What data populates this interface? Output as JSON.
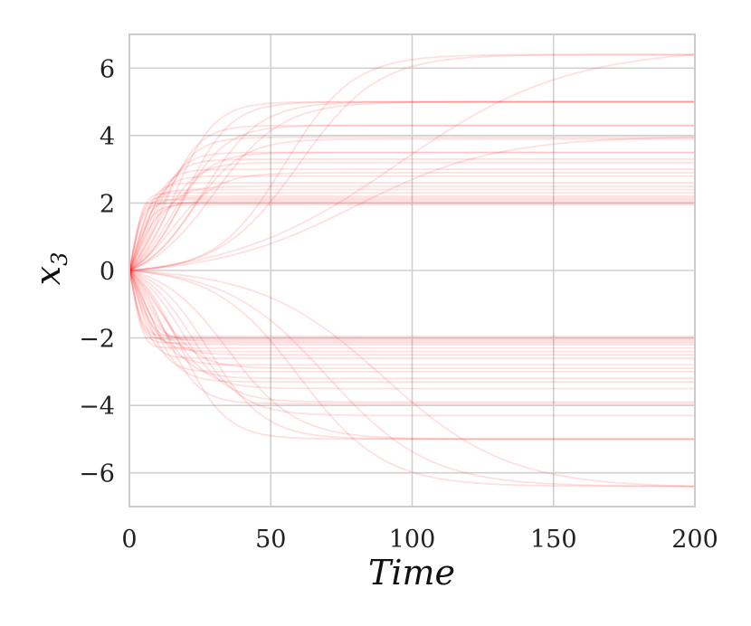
{
  "chart_data": {
    "type": "line",
    "title": "",
    "xlabel": "Time",
    "ylabel": "x",
    "ylabel_subscript": "3",
    "xlim": [
      0,
      200
    ],
    "ylim": [
      -7,
      7
    ],
    "xticks": [
      0,
      50,
      100,
      150,
      200
    ],
    "xtick_labels": [
      "0",
      "50",
      "100",
      "150",
      "200"
    ],
    "yticks": [
      -6,
      -4,
      -2,
      0,
      2,
      4,
      6
    ],
    "ytick_labels": [
      "−6",
      "−4",
      "−2",
      "0",
      "2",
      "4",
      "6"
    ],
    "grid": true,
    "legend": "none",
    "line_color": "#ff0000",
    "line_opacity": 0.12,
    "trajectory_start": 0,
    "trajectories": [
      {
        "final": 6.4,
        "tau": 30,
        "t50": 95
      },
      {
        "final": 6.4,
        "tau": 12,
        "t50": 55
      },
      {
        "final": 6.4,
        "tau": 14,
        "t50": 60
      },
      {
        "final": 5.0,
        "tau": 8,
        "t50": 20
      },
      {
        "final": 5.0,
        "tau": 10,
        "t50": 26
      },
      {
        "final": 5.0,
        "tau": 7,
        "t50": 16
      },
      {
        "final": 5.0,
        "tau": 12,
        "t50": 30
      },
      {
        "final": 4.3,
        "tau": 6,
        "t50": 12
      },
      {
        "final": 4.3,
        "tau": 8,
        "t50": 18
      },
      {
        "final": 3.95,
        "tau": 25,
        "t50": 80
      },
      {
        "final": 3.95,
        "tau": 6,
        "t50": 10
      },
      {
        "final": 3.9,
        "tau": 9,
        "t50": 22
      },
      {
        "final": 3.5,
        "tau": 5,
        "t50": 8
      },
      {
        "final": 3.5,
        "tau": 7,
        "t50": 14
      },
      {
        "final": 3.3,
        "tau": 5,
        "t50": 6
      },
      {
        "final": 3.2,
        "tau": 6,
        "t50": 11
      },
      {
        "final": 3.0,
        "tau": 4,
        "t50": 5
      },
      {
        "final": 2.9,
        "tau": 8,
        "t50": 15
      },
      {
        "final": 2.8,
        "tau": 4,
        "t50": 4
      },
      {
        "final": 2.6,
        "tau": 3,
        "t50": 3
      },
      {
        "final": 2.5,
        "tau": 5,
        "t50": 7
      },
      {
        "final": 2.4,
        "tau": 3,
        "t50": 2
      },
      {
        "final": 2.3,
        "tau": 2,
        "t50": 1
      },
      {
        "final": 2.2,
        "tau": 2,
        "t50": 1
      },
      {
        "final": 2.15,
        "tau": 3,
        "t50": 2
      },
      {
        "final": 2.1,
        "tau": 2,
        "t50": 1
      },
      {
        "final": 2.05,
        "tau": 4,
        "t50": 3
      },
      {
        "final": 2.0,
        "tau": 2,
        "t50": 1
      },
      {
        "final": 1.95,
        "tau": 3,
        "t50": 2
      },
      {
        "final": -1.95,
        "tau": 2,
        "t50": 1
      },
      {
        "final": -2.0,
        "tau": 3,
        "t50": 2
      },
      {
        "final": -2.05,
        "tau": 2,
        "t50": 1
      },
      {
        "final": -2.1,
        "tau": 4,
        "t50": 3
      },
      {
        "final": -2.15,
        "tau": 2,
        "t50": 1
      },
      {
        "final": -2.2,
        "tau": 3,
        "t50": 2
      },
      {
        "final": -2.3,
        "tau": 2,
        "t50": 1
      },
      {
        "final": -2.4,
        "tau": 4,
        "t50": 3
      },
      {
        "final": -2.5,
        "tau": 5,
        "t50": 6
      },
      {
        "final": -2.6,
        "tau": 3,
        "t50": 3
      },
      {
        "final": -2.8,
        "tau": 5,
        "t50": 5
      },
      {
        "final": -2.9,
        "tau": 7,
        "t50": 10
      },
      {
        "final": -3.0,
        "tau": 4,
        "t50": 5
      },
      {
        "final": -3.2,
        "tau": 6,
        "t50": 9
      },
      {
        "final": -3.3,
        "tau": 5,
        "t50": 7
      },
      {
        "final": -3.5,
        "tau": 7,
        "t50": 13
      },
      {
        "final": -3.9,
        "tau": 8,
        "t50": 18
      },
      {
        "final": -3.95,
        "tau": 6,
        "t50": 12
      },
      {
        "final": -4.3,
        "tau": 9,
        "t50": 22
      },
      {
        "final": -5.0,
        "tau": 10,
        "t50": 28
      },
      {
        "final": -5.0,
        "tau": 8,
        "t50": 18
      },
      {
        "final": -5.0,
        "tau": 12,
        "t50": 35
      },
      {
        "final": -6.4,
        "tau": 18,
        "t50": 70
      },
      {
        "final": -6.4,
        "tau": 22,
        "t50": 90
      },
      {
        "final": -6.4,
        "tau": 15,
        "t50": 60
      }
    ]
  }
}
